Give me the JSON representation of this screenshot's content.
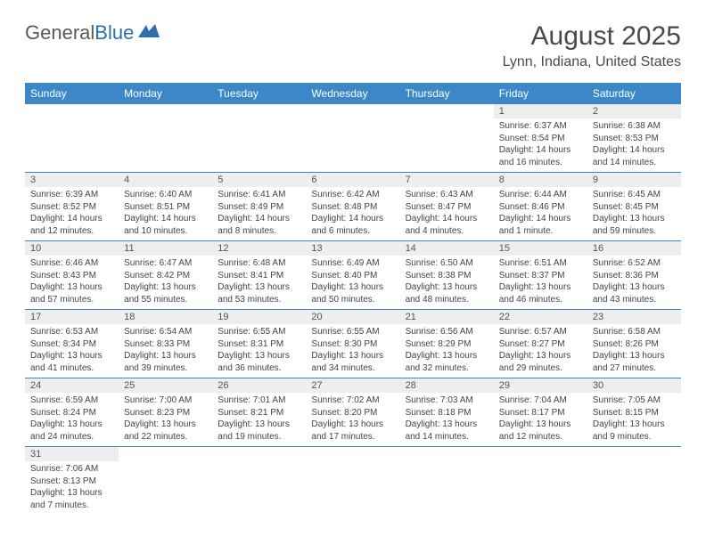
{
  "logo": {
    "text1": "General",
    "text2": "Blue"
  },
  "title": "August 2025",
  "location": "Lynn, Indiana, United States",
  "colors": {
    "header_bg": "#3b87c8",
    "header_text": "#ffffff",
    "daynum_bg": "#eeeeee",
    "border": "#3b87c8",
    "text": "#444444"
  },
  "day_headers": [
    "Sunday",
    "Monday",
    "Tuesday",
    "Wednesday",
    "Thursday",
    "Friday",
    "Saturday"
  ],
  "weeks": [
    [
      null,
      null,
      null,
      null,
      null,
      {
        "n": "1",
        "sr": "Sunrise: 6:37 AM",
        "ss": "Sunset: 8:54 PM",
        "dl": "Daylight: 14 hours and 16 minutes."
      },
      {
        "n": "2",
        "sr": "Sunrise: 6:38 AM",
        "ss": "Sunset: 8:53 PM",
        "dl": "Daylight: 14 hours and 14 minutes."
      }
    ],
    [
      {
        "n": "3",
        "sr": "Sunrise: 6:39 AM",
        "ss": "Sunset: 8:52 PM",
        "dl": "Daylight: 14 hours and 12 minutes."
      },
      {
        "n": "4",
        "sr": "Sunrise: 6:40 AM",
        "ss": "Sunset: 8:51 PM",
        "dl": "Daylight: 14 hours and 10 minutes."
      },
      {
        "n": "5",
        "sr": "Sunrise: 6:41 AM",
        "ss": "Sunset: 8:49 PM",
        "dl": "Daylight: 14 hours and 8 minutes."
      },
      {
        "n": "6",
        "sr": "Sunrise: 6:42 AM",
        "ss": "Sunset: 8:48 PM",
        "dl": "Daylight: 14 hours and 6 minutes."
      },
      {
        "n": "7",
        "sr": "Sunrise: 6:43 AM",
        "ss": "Sunset: 8:47 PM",
        "dl": "Daylight: 14 hours and 4 minutes."
      },
      {
        "n": "8",
        "sr": "Sunrise: 6:44 AM",
        "ss": "Sunset: 8:46 PM",
        "dl": "Daylight: 14 hours and 1 minute."
      },
      {
        "n": "9",
        "sr": "Sunrise: 6:45 AM",
        "ss": "Sunset: 8:45 PM",
        "dl": "Daylight: 13 hours and 59 minutes."
      }
    ],
    [
      {
        "n": "10",
        "sr": "Sunrise: 6:46 AM",
        "ss": "Sunset: 8:43 PM",
        "dl": "Daylight: 13 hours and 57 minutes."
      },
      {
        "n": "11",
        "sr": "Sunrise: 6:47 AM",
        "ss": "Sunset: 8:42 PM",
        "dl": "Daylight: 13 hours and 55 minutes."
      },
      {
        "n": "12",
        "sr": "Sunrise: 6:48 AM",
        "ss": "Sunset: 8:41 PM",
        "dl": "Daylight: 13 hours and 53 minutes."
      },
      {
        "n": "13",
        "sr": "Sunrise: 6:49 AM",
        "ss": "Sunset: 8:40 PM",
        "dl": "Daylight: 13 hours and 50 minutes."
      },
      {
        "n": "14",
        "sr": "Sunrise: 6:50 AM",
        "ss": "Sunset: 8:38 PM",
        "dl": "Daylight: 13 hours and 48 minutes."
      },
      {
        "n": "15",
        "sr": "Sunrise: 6:51 AM",
        "ss": "Sunset: 8:37 PM",
        "dl": "Daylight: 13 hours and 46 minutes."
      },
      {
        "n": "16",
        "sr": "Sunrise: 6:52 AM",
        "ss": "Sunset: 8:36 PM",
        "dl": "Daylight: 13 hours and 43 minutes."
      }
    ],
    [
      {
        "n": "17",
        "sr": "Sunrise: 6:53 AM",
        "ss": "Sunset: 8:34 PM",
        "dl": "Daylight: 13 hours and 41 minutes."
      },
      {
        "n": "18",
        "sr": "Sunrise: 6:54 AM",
        "ss": "Sunset: 8:33 PM",
        "dl": "Daylight: 13 hours and 39 minutes."
      },
      {
        "n": "19",
        "sr": "Sunrise: 6:55 AM",
        "ss": "Sunset: 8:31 PM",
        "dl": "Daylight: 13 hours and 36 minutes."
      },
      {
        "n": "20",
        "sr": "Sunrise: 6:55 AM",
        "ss": "Sunset: 8:30 PM",
        "dl": "Daylight: 13 hours and 34 minutes."
      },
      {
        "n": "21",
        "sr": "Sunrise: 6:56 AM",
        "ss": "Sunset: 8:29 PM",
        "dl": "Daylight: 13 hours and 32 minutes."
      },
      {
        "n": "22",
        "sr": "Sunrise: 6:57 AM",
        "ss": "Sunset: 8:27 PM",
        "dl": "Daylight: 13 hours and 29 minutes."
      },
      {
        "n": "23",
        "sr": "Sunrise: 6:58 AM",
        "ss": "Sunset: 8:26 PM",
        "dl": "Daylight: 13 hours and 27 minutes."
      }
    ],
    [
      {
        "n": "24",
        "sr": "Sunrise: 6:59 AM",
        "ss": "Sunset: 8:24 PM",
        "dl": "Daylight: 13 hours and 24 minutes."
      },
      {
        "n": "25",
        "sr": "Sunrise: 7:00 AM",
        "ss": "Sunset: 8:23 PM",
        "dl": "Daylight: 13 hours and 22 minutes."
      },
      {
        "n": "26",
        "sr": "Sunrise: 7:01 AM",
        "ss": "Sunset: 8:21 PM",
        "dl": "Daylight: 13 hours and 19 minutes."
      },
      {
        "n": "27",
        "sr": "Sunrise: 7:02 AM",
        "ss": "Sunset: 8:20 PM",
        "dl": "Daylight: 13 hours and 17 minutes."
      },
      {
        "n": "28",
        "sr": "Sunrise: 7:03 AM",
        "ss": "Sunset: 8:18 PM",
        "dl": "Daylight: 13 hours and 14 minutes."
      },
      {
        "n": "29",
        "sr": "Sunrise: 7:04 AM",
        "ss": "Sunset: 8:17 PM",
        "dl": "Daylight: 13 hours and 12 minutes."
      },
      {
        "n": "30",
        "sr": "Sunrise: 7:05 AM",
        "ss": "Sunset: 8:15 PM",
        "dl": "Daylight: 13 hours and 9 minutes."
      }
    ],
    [
      {
        "n": "31",
        "sr": "Sunrise: 7:06 AM",
        "ss": "Sunset: 8:13 PM",
        "dl": "Daylight: 13 hours and 7 minutes."
      },
      null,
      null,
      null,
      null,
      null,
      null
    ]
  ]
}
